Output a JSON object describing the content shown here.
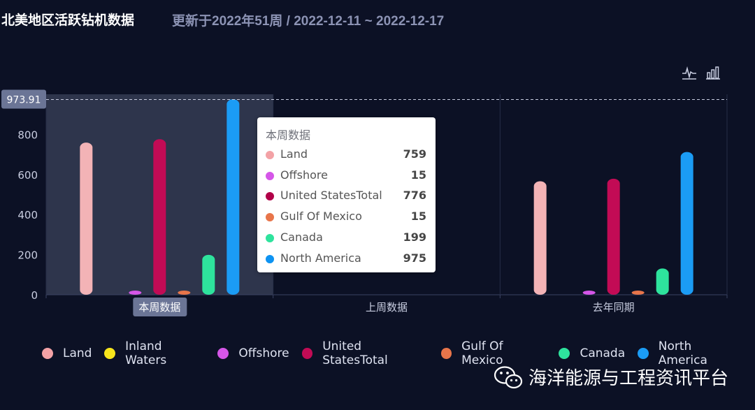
{
  "header": {
    "title": "北美地区活跃钻机数据",
    "subtitle": "更新于2022年51周 / 2022-12-11 ~ 2022-12-17"
  },
  "toolbox": {
    "line_icon": "line-chart-icon",
    "bar_icon": "bar-chart-icon"
  },
  "chart_data": {
    "type": "bar",
    "categories": [
      "本周数据",
      "上周数据",
      "去年同期"
    ],
    "ylim": [
      0,
      1000
    ],
    "yticks": [
      0,
      200,
      400,
      600,
      800,
      1000
    ],
    "grid": false,
    "legend_position": "bottom",
    "hovered_category_index": 0,
    "axis_pointer_label": "973.91",
    "axis_pointer_value": 973.91,
    "series": [
      {
        "name": "Land",
        "color": "#f3b3b6",
        "values": [
          759,
          null,
          566
        ]
      },
      {
        "name": "Inland Waters",
        "color": "#f7e51c",
        "values": [
          0,
          null,
          0
        ]
      },
      {
        "name": "Offshore",
        "color": "#d556e8",
        "values": [
          15,
          null,
          13
        ]
      },
      {
        "name": "United StatesTotal",
        "color": "#c20b55",
        "values": [
          776,
          null,
          579
        ]
      },
      {
        "name": "Gulf Of Mexico",
        "color": "#e8754a",
        "values": [
          15,
          null,
          13
        ]
      },
      {
        "name": "Canada",
        "color": "#2ee39d",
        "values": [
          199,
          null,
          131
        ]
      },
      {
        "name": "North America",
        "color": "#1b9cf5",
        "values": [
          975,
          null,
          712
        ]
      }
    ]
  },
  "tooltip": {
    "title": "本周数据",
    "rows": [
      {
        "name": "Land",
        "value": "759",
        "color": "#f3a2a6"
      },
      {
        "name": "Offshore",
        "value": "15",
        "color": "#d556e8"
      },
      {
        "name": "United StatesTotal",
        "value": "776",
        "color": "#b10048"
      },
      {
        "name": "Gulf Of Mexico",
        "value": "15",
        "color": "#e8754a"
      },
      {
        "name": "Canada",
        "value": "199",
        "color": "#2ee39d"
      },
      {
        "name": "North America",
        "value": "975",
        "color": "#0d93f2"
      }
    ]
  },
  "legend": [
    {
      "name": "Land",
      "color": "#f3a2a6"
    },
    {
      "name": "Inland Waters",
      "color": "#f7e51c"
    },
    {
      "name": "Offshore",
      "color": "#d556e8"
    },
    {
      "name": "United StatesTotal",
      "color": "#c20b55"
    },
    {
      "name": "Gulf Of Mexico",
      "color": "#e8754a"
    },
    {
      "name": "Canada",
      "color": "#2ee39d"
    },
    {
      "name": "North America",
      "color": "#1b9cf5"
    }
  ],
  "watermark": {
    "icon": "wechat-icon",
    "text": "海洋能源与工程资讯平台"
  }
}
